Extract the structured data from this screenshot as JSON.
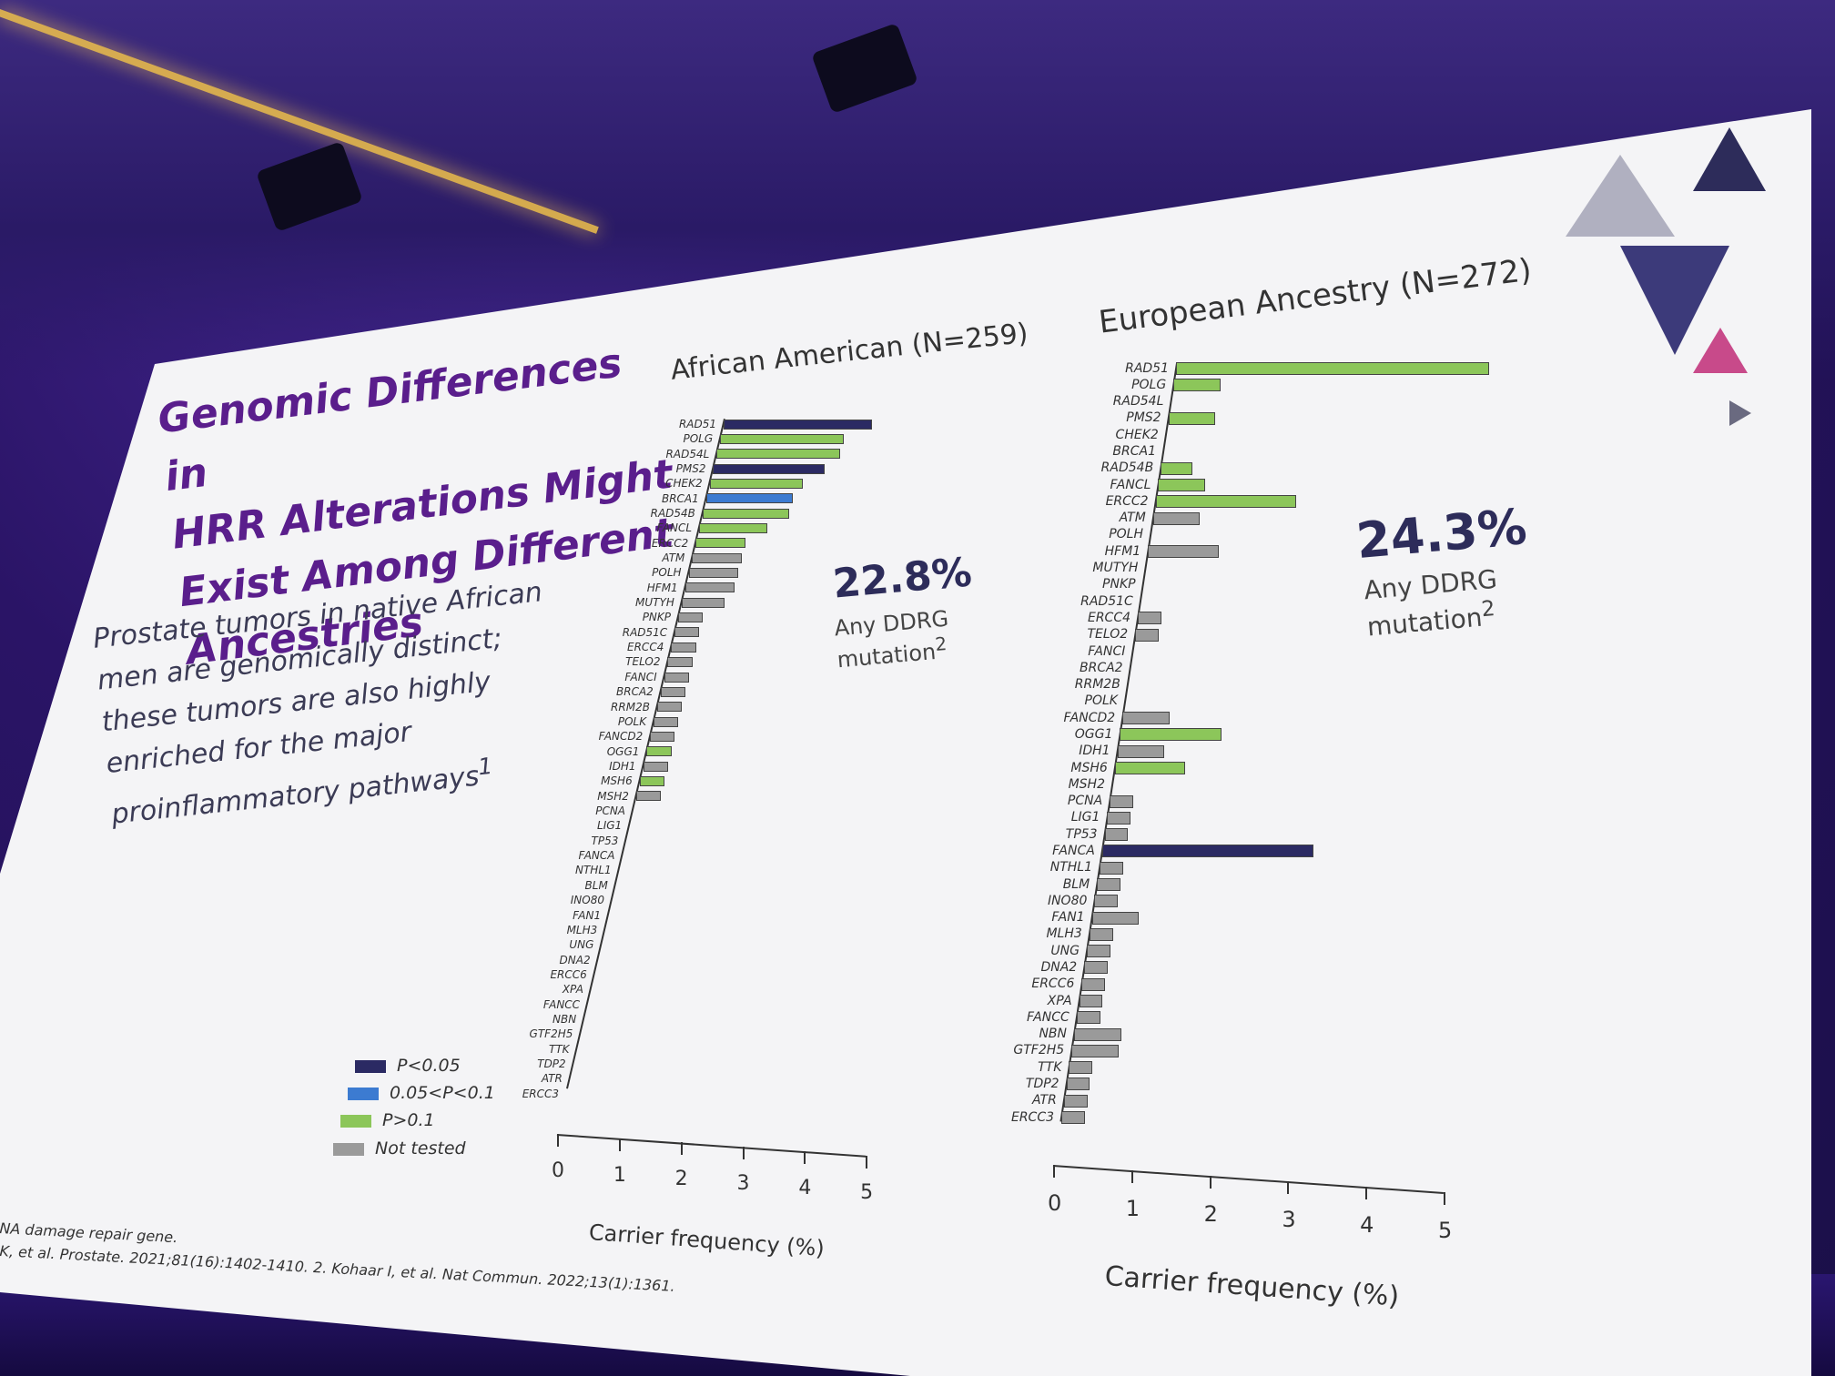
{
  "slide": {
    "title_lines": [
      "Genomic Differences in",
      "HRR Alterations Might",
      "Exist Among Different",
      "Ancestries"
    ],
    "body_lines": [
      "Prostate tumors in native African",
      "men are genomically distinct;",
      "these tumors are also highly",
      "enriched for the major",
      "proinflammatory pathways"
    ],
    "body_superscript": "1",
    "footnote_line1": "NA damage repair gene.",
    "footnote_line2": "K, et al. Prostate. 2021;81(16):1402-1410. 2. Kohaar I, et al. Nat Commun. 2022;13(1):1361."
  },
  "legend": {
    "items": [
      {
        "label": "P<0.05",
        "color": "#2b2a63"
      },
      {
        "label": "0.05<P<0.1",
        "color": "#3c7bd1"
      },
      {
        "label": "P>0.1",
        "color": "#8cc65a"
      },
      {
        "label": "Not tested",
        "color": "#9a9a9a"
      }
    ]
  },
  "panels": {
    "aa": {
      "title": "African American (N=259)",
      "stat_value": "22.8%",
      "stat_label_line1": "Any DDRG",
      "stat_label_line2": "mutation",
      "stat_superscript": "2",
      "xlabel": "Carrier frequency (%)"
    },
    "eu": {
      "title": "European Ancestry (N=272)",
      "stat_value": "24.3%",
      "stat_label_line1": "Any DDRG",
      "stat_label_line2": "mutation",
      "stat_superscript": "2",
      "xlabel": "Carrier frequency (%)"
    }
  },
  "chart_data": [
    {
      "type": "bar",
      "orientation": "horizontal",
      "title": "African American (N=259)",
      "xlabel": "Carrier frequency (%)",
      "xlim": [
        0,
        5
      ],
      "xticks": [
        "0",
        "1",
        "2",
        "3",
        "4",
        "5"
      ],
      "categories": [
        "RAD51",
        "POLG",
        "RAD54L",
        "PMS2",
        "CHEK2",
        "BRCA1",
        "RAD54B",
        "FANCL",
        "ERCC2",
        "ATM",
        "POLH",
        "HFM1",
        "MUTYH",
        "PNKP",
        "RAD51C",
        "ERCC4",
        "TELO2",
        "FANCI",
        "BRCA2",
        "RRM2B",
        "POLK",
        "FANCD2",
        "OGG1",
        "IDH1",
        "MSH6",
        "MSH2",
        "PCNA",
        "LIG1",
        "TP53",
        "FANCA",
        "NTHL1",
        "BLM",
        "INO80",
        "FAN1",
        "MLH3",
        "UNG",
        "DNA2",
        "ERCC6",
        "XPA",
        "FANCC",
        "NBN",
        "GTF2H5",
        "TTK",
        "TDP2",
        "ATR",
        "ERCC3"
      ],
      "values": [
        2.4,
        2.0,
        2.0,
        1.8,
        1.5,
        1.4,
        1.4,
        1.1,
        0.8,
        0.8,
        0.8,
        0.8,
        0.7,
        0.4,
        0.4,
        0.4,
        0.4,
        0.4,
        0.4,
        0.4,
        0.4,
        0.4,
        0.4,
        0.4,
        0.4,
        0.4,
        0,
        0,
        0,
        0,
        0,
        0,
        0,
        0,
        0,
        0,
        0,
        0,
        0,
        0,
        0,
        0,
        0,
        0,
        0,
        0
      ],
      "significance": [
        "P<0.05",
        "P>0.1",
        "P>0.1",
        "P<0.05",
        "P>0.1",
        "0.05<P<0.1",
        "P>0.1",
        "P>0.1",
        "P>0.1",
        "Not tested",
        "Not tested",
        "Not tested",
        "Not tested",
        "Not tested",
        "Not tested",
        "Not tested",
        "Not tested",
        "Not tested",
        "Not tested",
        "Not tested",
        "Not tested",
        "Not tested",
        "P>0.1",
        "Not tested",
        "P>0.1",
        "Not tested",
        "Not tested",
        "Not tested",
        "Not tested",
        "Not tested",
        "Not tested",
        "Not tested",
        "Not tested",
        "Not tested",
        "Not tested",
        "Not tested",
        "Not tested",
        "Not tested",
        "Not tested",
        "Not tested",
        "Not tested",
        "Not tested",
        "Not tested",
        "Not tested",
        "Not tested",
        "Not tested"
      ]
    },
    {
      "type": "bar",
      "orientation": "horizontal",
      "title": "European Ancestry (N=272)",
      "xlabel": "Carrier frequency (%)",
      "xlim": [
        0,
        5
      ],
      "xticks": [
        "0",
        "1",
        "2",
        "3",
        "4",
        "5"
      ],
      "categories": [
        "RAD51",
        "POLG",
        "RAD54L",
        "PMS2",
        "CHEK2",
        "BRCA1",
        "RAD54B",
        "FANCL",
        "ERCC2",
        "ATM",
        "POLH",
        "HFM1",
        "MUTYH",
        "PNKP",
        "RAD51C",
        "ERCC4",
        "TELO2",
        "FANCI",
        "BRCA2",
        "RRM2B",
        "POLK",
        "FANCD2",
        "OGG1",
        "IDH1",
        "MSH6",
        "MSH2",
        "PCNA",
        "LIG1",
        "TP53",
        "FANCA",
        "NTHL1",
        "BLM",
        "INO80",
        "FAN1",
        "MLH3",
        "UNG",
        "DNA2",
        "ERCC6",
        "XPA",
        "FANCC",
        "NBN",
        "GTF2H5",
        "TTK",
        "TDP2",
        "ATR",
        "ERCC3"
      ],
      "values": [
        4.0,
        0.6,
        0,
        0.6,
        0,
        0,
        0.4,
        0.6,
        1.8,
        0.6,
        0,
        0.9,
        0,
        0,
        0,
        0.3,
        0.3,
        0,
        0,
        0,
        0,
        0.6,
        1.3,
        0.6,
        0.9,
        0,
        0.3,
        0.3,
        0.3,
        2.7,
        0.3,
        0.3,
        0.3,
        0.6,
        0.3,
        0.3,
        0.3,
        0.3,
        0.3,
        0.3,
        0.6,
        0.6,
        0.3,
        0.3,
        0.3,
        0.3
      ],
      "significance": [
        "P>0.1",
        "P>0.1",
        "P>0.1",
        "P>0.1",
        "P>0.1",
        "P>0.1",
        "P>0.1",
        "P>0.1",
        "P>0.1",
        "Not tested",
        "Not tested",
        "Not tested",
        "Not tested",
        "Not tested",
        "Not tested",
        "Not tested",
        "Not tested",
        "Not tested",
        "Not tested",
        "Not tested",
        "Not tested",
        "Not tested",
        "P>0.1",
        "Not tested",
        "P>0.1",
        "Not tested",
        "Not tested",
        "Not tested",
        "Not tested",
        "P<0.05",
        "Not tested",
        "Not tested",
        "Not tested",
        "Not tested",
        "Not tested",
        "Not tested",
        "Not tested",
        "Not tested",
        "Not tested",
        "Not tested",
        "Not tested",
        "Not tested",
        "Not tested",
        "Not tested",
        "Not tested",
        "Not tested"
      ]
    }
  ]
}
